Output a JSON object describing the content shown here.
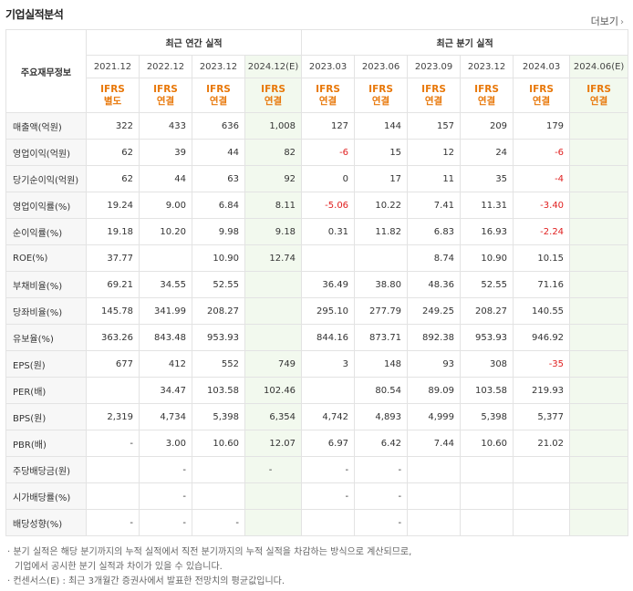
{
  "title": "기업실적분석",
  "more_label": "더보기",
  "header": {
    "row_label": "주요재무정보",
    "annual_label": "최근 연간 실적",
    "quarter_label": "최근 분기 실적",
    "periods": [
      "2021.12",
      "2022.12",
      "2023.12",
      "2024.12(E)",
      "2023.03",
      "2023.06",
      "2023.09",
      "2023.12",
      "2024.03",
      "2024.06(E)"
    ],
    "types": [
      [
        "IFRS",
        "별도"
      ],
      [
        "IFRS",
        "연결"
      ],
      [
        "IFRS",
        "연결"
      ],
      [
        "IFRS",
        "연결"
      ],
      [
        "IFRS",
        "연결"
      ],
      [
        "IFRS",
        "연결"
      ],
      [
        "IFRS",
        "연결"
      ],
      [
        "IFRS",
        "연결"
      ],
      [
        "IFRS",
        "연결"
      ],
      [
        "IFRS",
        "연결"
      ]
    ]
  },
  "rows": [
    {
      "label": "매출액(억원)",
      "values": [
        "322",
        "433",
        "636",
        "1,008",
        "127",
        "144",
        "157",
        "209",
        "179",
        ""
      ]
    },
    {
      "label": "영업이익(억원)",
      "values": [
        "62",
        "39",
        "44",
        "82",
        "-6",
        "15",
        "12",
        "24",
        "-6",
        ""
      ]
    },
    {
      "label": "당기순이익(억원)",
      "values": [
        "62",
        "44",
        "63",
        "92",
        "0",
        "17",
        "11",
        "35",
        "-4",
        ""
      ]
    },
    {
      "label": "영업이익률(%)",
      "values": [
        "19.24",
        "9.00",
        "6.84",
        "8.11",
        "-5.06",
        "10.22",
        "7.41",
        "11.31",
        "-3.40",
        ""
      ]
    },
    {
      "label": "순이익률(%)",
      "values": [
        "19.18",
        "10.20",
        "9.98",
        "9.18",
        "0.31",
        "11.82",
        "6.83",
        "16.93",
        "-2.24",
        ""
      ]
    },
    {
      "label": "ROE(%)",
      "values": [
        "37.77",
        "",
        "10.90",
        "12.74",
        "",
        "",
        "8.74",
        "10.90",
        "10.15",
        ""
      ]
    },
    {
      "label": "부채비율(%)",
      "values": [
        "69.21",
        "34.55",
        "52.55",
        "",
        "36.49",
        "38.80",
        "48.36",
        "52.55",
        "71.16",
        ""
      ]
    },
    {
      "label": "당좌비율(%)",
      "values": [
        "145.78",
        "341.99",
        "208.27",
        "",
        "295.10",
        "277.79",
        "249.25",
        "208.27",
        "140.55",
        ""
      ]
    },
    {
      "label": "유보율(%)",
      "values": [
        "363.26",
        "843.48",
        "953.93",
        "",
        "844.16",
        "873.71",
        "892.38",
        "953.93",
        "946.92",
        ""
      ]
    },
    {
      "label": "EPS(원)",
      "values": [
        "677",
        "412",
        "552",
        "749",
        "3",
        "148",
        "93",
        "308",
        "-35",
        ""
      ]
    },
    {
      "label": "PER(배)",
      "values": [
        "",
        "34.47",
        "103.58",
        "102.46",
        "",
        "80.54",
        "89.09",
        "103.58",
        "219.93",
        ""
      ]
    },
    {
      "label": "BPS(원)",
      "values": [
        "2,319",
        "4,734",
        "5,398",
        "6,354",
        "4,742",
        "4,893",
        "4,999",
        "5,398",
        "5,377",
        ""
      ]
    },
    {
      "label": "PBR(배)",
      "values": [
        "-",
        "3.00",
        "10.60",
        "12.07",
        "6.97",
        "6.42",
        "7.44",
        "10.60",
        "21.02",
        ""
      ]
    },
    {
      "label": "주당배당금(원)",
      "values": [
        "",
        "-",
        "",
        "-",
        "-",
        "-",
        "",
        "",
        "",
        ""
      ]
    },
    {
      "label": "시가배당률(%)",
      "values": [
        "",
        "-",
        "",
        "",
        "-",
        "-",
        "",
        "",
        "",
        ""
      ]
    },
    {
      "label": "배당성향(%)",
      "values": [
        "-",
        "-",
        "-",
        "",
        "",
        "-",
        "",
        "",
        "",
        ""
      ]
    }
  ],
  "notes": [
    "분기 실적은 해당 분기까지의 누적 실적에서 직전 분기까지의 누적 실적을 차감하는 방식으로 계산되므로,",
    "기업에서 공시한 분기 실적과 차이가 있을 수 있습니다.",
    "컨센서스(E) : 최근 3개월간 증권사에서 발표한 전망치의 평균값입니다."
  ],
  "colors": {
    "ifrs": "#e8780a",
    "negative": "#e02020",
    "estimate_bg": "#f2f9ee"
  }
}
